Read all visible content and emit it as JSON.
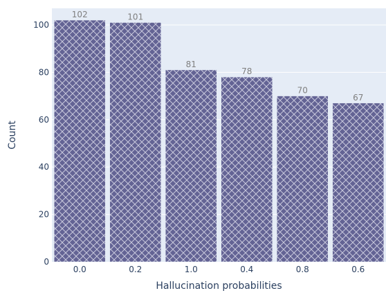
{
  "chart_data": {
    "type": "bar",
    "categories": [
      "0.0",
      "0.2",
      "1.0",
      "0.4",
      "0.8",
      "0.6"
    ],
    "values": [
      102,
      101,
      81,
      78,
      70,
      67
    ],
    "data_labels": [
      "102",
      "101",
      "81",
      "78",
      "70",
      "67"
    ],
    "xlabel": "Hallucination probabilities",
    "ylabel": "Count",
    "ylim": [
      0,
      107
    ],
    "yticks": [
      0,
      20,
      40,
      60,
      80,
      100
    ],
    "grid": true,
    "colors": {
      "bar": "#636394",
      "bar_pattern": "#c8c8dc",
      "plot_background": "#e5ecf6",
      "grid": "#ffffff"
    }
  }
}
